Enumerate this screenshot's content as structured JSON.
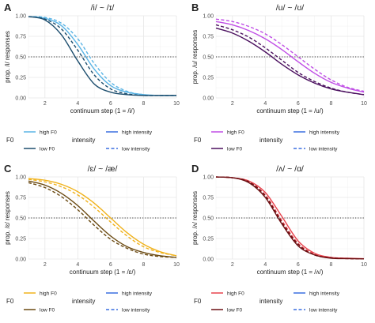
{
  "chart_data": [
    {
      "panel": "A",
      "type": "line",
      "title": "/i/ ~ /ɪ/",
      "xlabel": "continuum step (1 = /i/)",
      "ylabel": "prop. /i/ responses",
      "xlim": [
        1,
        10
      ],
      "ylim": [
        0,
        1
      ],
      "xticks": [
        2,
        4,
        6,
        8,
        10
      ],
      "yticks": [
        "0.00",
        "0.25",
        "0.50",
        "0.75",
        "1.00"
      ],
      "reference_line": 0.5,
      "grid": true,
      "x": [
        1,
        2,
        3,
        4,
        5,
        6,
        7,
        8,
        9,
        10
      ],
      "series": [
        {
          "name": "high F0, high intensity",
          "color": "#5ab4e5",
          "dash": false,
          "values": [
            0.99,
            0.97,
            0.88,
            0.65,
            0.35,
            0.15,
            0.07,
            0.04,
            0.03,
            0.03
          ]
        },
        {
          "name": "high F0, low intensity",
          "color": "#5ab4e5",
          "dash": true,
          "values": [
            0.99,
            0.98,
            0.91,
            0.72,
            0.42,
            0.19,
            0.08,
            0.04,
            0.03,
            0.03
          ]
        },
        {
          "name": "low F0, high intensity",
          "color": "#1d4e6e",
          "dash": false,
          "values": [
            0.99,
            0.95,
            0.77,
            0.45,
            0.17,
            0.07,
            0.04,
            0.03,
            0.03,
            0.03
          ]
        },
        {
          "name": "low F0, low intensity",
          "color": "#1d4e6e",
          "dash": true,
          "values": [
            0.99,
            0.96,
            0.84,
            0.58,
            0.28,
            0.11,
            0.05,
            0.03,
            0.03,
            0.03
          ]
        }
      ]
    },
    {
      "panel": "B",
      "type": "line",
      "title": "/u/ ~ /ʊ/",
      "xlabel": "continuum step (1 = /u/)",
      "ylabel": "prop. /u/ responses",
      "xlim": [
        1,
        10
      ],
      "ylim": [
        0,
        1
      ],
      "xticks": [
        2,
        4,
        6,
        8,
        10
      ],
      "yticks": [
        "0.00",
        "0.25",
        "0.50",
        "0.75",
        "1.00"
      ],
      "reference_line": 0.5,
      "grid": true,
      "x": [
        1,
        2,
        3,
        4,
        5,
        6,
        7,
        8,
        9,
        10
      ],
      "series": [
        {
          "name": "high F0, high intensity",
          "color": "#c04ee6",
          "dash": false,
          "values": [
            0.93,
            0.89,
            0.82,
            0.72,
            0.59,
            0.44,
            0.3,
            0.19,
            0.12,
            0.07
          ]
        },
        {
          "name": "high F0, low intensity",
          "color": "#c04ee6",
          "dash": true,
          "values": [
            0.96,
            0.93,
            0.87,
            0.78,
            0.65,
            0.5,
            0.35,
            0.22,
            0.13,
            0.08
          ]
        },
        {
          "name": "low F0, high intensity",
          "color": "#4a0f5e",
          "dash": false,
          "values": [
            0.85,
            0.79,
            0.69,
            0.56,
            0.41,
            0.28,
            0.18,
            0.11,
            0.07,
            0.04
          ]
        },
        {
          "name": "low F0, low intensity",
          "color": "#4a0f5e",
          "dash": true,
          "values": [
            0.89,
            0.83,
            0.74,
            0.61,
            0.46,
            0.31,
            0.2,
            0.12,
            0.07,
            0.04
          ]
        }
      ]
    },
    {
      "panel": "C",
      "type": "line",
      "title": "/ɛ/ ~ /æ/",
      "xlabel": "continuum step (1 = /ɛ/)",
      "ylabel": "prop. /ɛ/ responses",
      "xlim": [
        1,
        10
      ],
      "ylim": [
        0,
        1
      ],
      "xticks": [
        2,
        4,
        6,
        8,
        10
      ],
      "yticks": [
        "0.00",
        "0.25",
        "0.50",
        "0.75",
        "1.00"
      ],
      "reference_line": 0.5,
      "grid": true,
      "x": [
        1,
        2,
        3,
        4,
        5,
        6,
        7,
        8,
        9,
        10
      ],
      "series": [
        {
          "name": "high F0, high intensity",
          "color": "#f0b21c",
          "dash": false,
          "values": [
            0.98,
            0.96,
            0.91,
            0.82,
            0.68,
            0.5,
            0.32,
            0.18,
            0.09,
            0.04
          ]
        },
        {
          "name": "high F0, low intensity",
          "color": "#f0b21c",
          "dash": true,
          "values": [
            0.97,
            0.94,
            0.88,
            0.78,
            0.63,
            0.45,
            0.28,
            0.15,
            0.08,
            0.04
          ]
        },
        {
          "name": "low F0, high intensity",
          "color": "#6b4a12",
          "dash": false,
          "values": [
            0.95,
            0.9,
            0.8,
            0.65,
            0.46,
            0.28,
            0.15,
            0.08,
            0.04,
            0.02
          ]
        },
        {
          "name": "low F0, low intensity",
          "color": "#6b4a12",
          "dash": true,
          "values": [
            0.93,
            0.87,
            0.76,
            0.6,
            0.41,
            0.24,
            0.13,
            0.06,
            0.03,
            0.02
          ]
        }
      ]
    },
    {
      "panel": "D",
      "type": "line",
      "title": "/ʌ/ ~ /ɑ/",
      "xlabel": "continuum step (1 = /ʌ/)",
      "ylabel": "prop. /ʌ/ responses",
      "xlim": [
        1,
        10
      ],
      "ylim": [
        0,
        1
      ],
      "xticks": [
        2,
        4,
        6,
        8,
        10
      ],
      "yticks": [
        "0.00",
        "0.25",
        "0.50",
        "0.75",
        "1.00"
      ],
      "reference_line": 0.5,
      "grid": true,
      "x": [
        1,
        2,
        3,
        4,
        5,
        6,
        7,
        8,
        9,
        10
      ],
      "series": [
        {
          "name": "high F0, high intensity",
          "color": "#e8434d",
          "dash": false,
          "values": [
            0.999,
            0.99,
            0.95,
            0.81,
            0.52,
            0.22,
            0.07,
            0.02,
            0.01,
            0.004
          ]
        },
        {
          "name": "high F0, low intensity",
          "color": "#e8434d",
          "dash": true,
          "values": [
            0.999,
            0.99,
            0.94,
            0.78,
            0.47,
            0.19,
            0.06,
            0.02,
            0.005,
            0.003
          ]
        },
        {
          "name": "low F0, high intensity",
          "color": "#6b0f12",
          "dash": false,
          "values": [
            0.999,
            0.99,
            0.93,
            0.75,
            0.43,
            0.16,
            0.05,
            0.01,
            0.005,
            0.002
          ]
        },
        {
          "name": "low F0, low intensity",
          "color": "#6b0f12",
          "dash": true,
          "values": [
            0.999,
            0.99,
            0.94,
            0.77,
            0.45,
            0.18,
            0.05,
            0.015,
            0.005,
            0.002
          ]
        }
      ]
    }
  ],
  "legend": {
    "f0_title": "F0",
    "intensity_title": "intensity",
    "high_f0": "high F0",
    "low_f0": "low F0",
    "high_intensity": "high intensity",
    "low_intensity": "low intensity",
    "intensity_color": "#3a6fe0"
  }
}
